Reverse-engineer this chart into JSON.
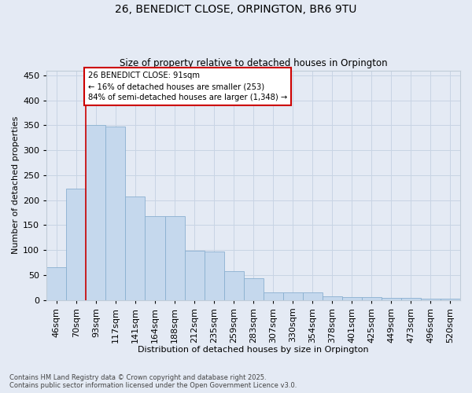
{
  "title_line1": "26, BENEDICT CLOSE, ORPINGTON, BR6 9TU",
  "title_line2": "Size of property relative to detached houses in Orpington",
  "xlabel": "Distribution of detached houses by size in Orpington",
  "ylabel": "Number of detached properties",
  "categories": [
    "46sqm",
    "70sqm",
    "93sqm",
    "117sqm",
    "141sqm",
    "164sqm",
    "188sqm",
    "212sqm",
    "235sqm",
    "259sqm",
    "283sqm",
    "307sqm",
    "330sqm",
    "354sqm",
    "378sqm",
    "401sqm",
    "425sqm",
    "449sqm",
    "473sqm",
    "496sqm",
    "520sqm"
  ],
  "values": [
    65,
    223,
    350,
    348,
    208,
    168,
    168,
    98,
    97,
    58,
    44,
    16,
    15,
    15,
    8,
    6,
    6,
    4,
    4,
    3,
    2
  ],
  "bar_color": "#c5d8ed",
  "bar_edge_color": "#8ab0d0",
  "vline_x_index": 2,
  "vline_color": "#cc0000",
  "annotation_text": "26 BENEDICT CLOSE: 91sqm\n← 16% of detached houses are smaller (253)\n84% of semi-detached houses are larger (1,348) →",
  "annotation_edge_color": "#cc0000",
  "annotation_face_color": "#ffffff",
  "grid_color": "#c8d4e4",
  "background_color": "#e4eaf4",
  "ylim": [
    0,
    460
  ],
  "yticks": [
    0,
    50,
    100,
    150,
    200,
    250,
    300,
    350,
    400,
    450
  ],
  "footer_line1": "Contains HM Land Registry data © Crown copyright and database right 2025.",
  "footer_line2": "Contains public sector information licensed under the Open Government Licence v3.0."
}
